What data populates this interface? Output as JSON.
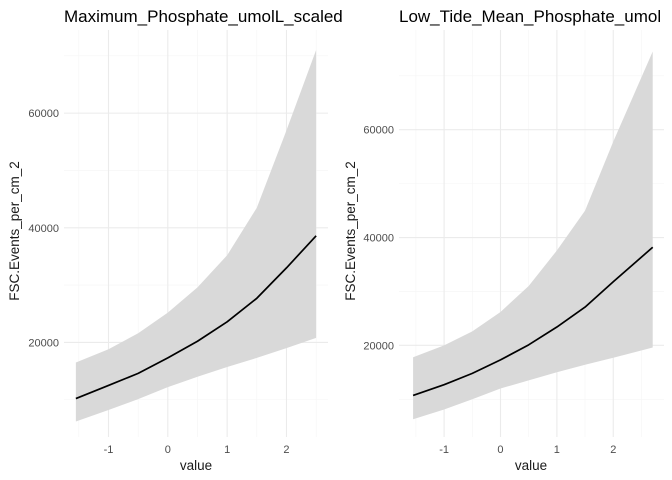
{
  "colors": {
    "background": "#ffffff",
    "grid_major": "#ebebeb",
    "grid_minor": "#f5f5f5",
    "ribbon": "#d9d9d9",
    "line": "#000000",
    "text": "#1a1a1a",
    "tick_text": "#4d4d4d"
  },
  "chart_data": [
    {
      "type": "line",
      "title": "Maximum_Phosphate_umolL_scaled",
      "xlabel": "value",
      "ylabel": "FSC.Events_per_cm_2",
      "xlim": [
        -1.75,
        2.7
      ],
      "ylim": [
        3500,
        74500
      ],
      "x_ticks": [
        -1,
        0,
        1,
        2
      ],
      "x_tick_labels": [
        "-1",
        "0",
        "1",
        "2"
      ],
      "y_ticks": [
        20000,
        40000,
        60000
      ],
      "y_tick_labels": [
        "20000",
        "40000",
        "60000"
      ],
      "grid": true,
      "legend": "none",
      "series": [
        {
          "x": [
            -1.55,
            -1.0,
            -0.5,
            0.0,
            0.5,
            1.0,
            1.5,
            2.0,
            2.5
          ],
          "y": [
            10200,
            12500,
            14600,
            17300,
            20200,
            23600,
            27700,
            33000,
            38600
          ],
          "lower": [
            6200,
            8200,
            10100,
            12200,
            14000,
            15700,
            17300,
            19000,
            20800
          ],
          "upper": [
            16500,
            18800,
            21600,
            25200,
            29600,
            35200,
            43500,
            57000,
            71000
          ]
        }
      ]
    },
    {
      "type": "line",
      "title": "Low_Tide_Mean_Phosphate_umol",
      "xlabel": "value",
      "ylabel": "FSC.Events_per_cm_2",
      "xlim": [
        -1.8,
        2.9
      ],
      "ylim": [
        3000,
        78500
      ],
      "x_ticks": [
        -1,
        0,
        1,
        2
      ],
      "x_tick_labels": [
        "-1",
        "0",
        "1",
        "2"
      ],
      "y_ticks": [
        20000,
        40000,
        60000
      ],
      "y_tick_labels": [
        "20000",
        "40000",
        "60000"
      ],
      "grid": true,
      "legend": "none",
      "series": [
        {
          "x": [
            -1.55,
            -1.0,
            -0.5,
            0.0,
            0.5,
            1.0,
            1.5,
            2.0,
            2.7
          ],
          "y": [
            10700,
            12700,
            14800,
            17300,
            20100,
            23400,
            27100,
            31800,
            38200
          ],
          "lower": [
            6300,
            8100,
            10000,
            12000,
            13500,
            15000,
            16400,
            17700,
            19600
          ],
          "upper": [
            17800,
            20000,
            22600,
            26200,
            31000,
            37600,
            45000,
            57800,
            74500
          ]
        }
      ]
    }
  ]
}
